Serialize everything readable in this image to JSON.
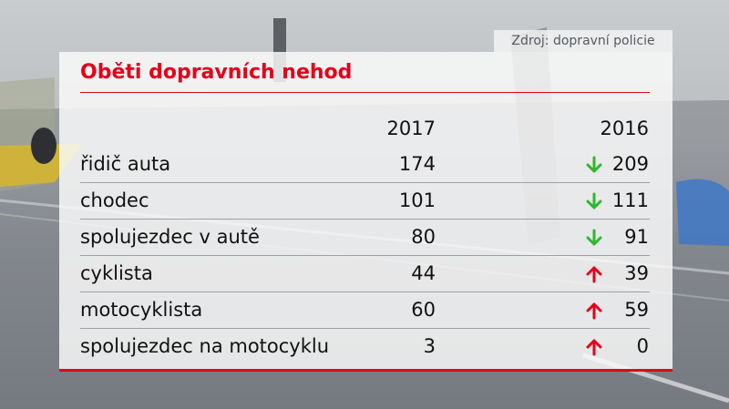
{
  "source_text": "Zdroj: dopravní policie",
  "title": "Oběti dopravních nehod",
  "colors": {
    "accent": "#e3001b",
    "down": "#2eb82e",
    "up": "#e3001b"
  },
  "chart_data": {
    "type": "table",
    "title": "Oběti dopravních nehod",
    "columns": [
      "2017",
      "2016"
    ],
    "rows": [
      {
        "label": "řidič auta",
        "v2017": "174",
        "v2016": "209",
        "trend": "down",
        "trend_icon": "arrow-down-icon"
      },
      {
        "label": "chodec",
        "v2017": "101",
        "v2016": "111",
        "trend": "down",
        "trend_icon": "arrow-down-icon"
      },
      {
        "label": "spolujezdec v autě",
        "v2017": "80",
        "v2016": "91",
        "trend": "down",
        "trend_icon": "arrow-down-icon"
      },
      {
        "label": "cyklista",
        "v2017": "44",
        "v2016": "39",
        "trend": "up",
        "trend_icon": "arrow-up-icon"
      },
      {
        "label": "motocyklista",
        "v2017": "60",
        "v2016": "59",
        "trend": "up",
        "trend_icon": "arrow-up-icon"
      },
      {
        "label": "spolujezdec na motocyklu",
        "v2017": "3",
        "v2016": "0",
        "trend": "up",
        "trend_icon": "arrow-up-icon"
      }
    ]
  }
}
